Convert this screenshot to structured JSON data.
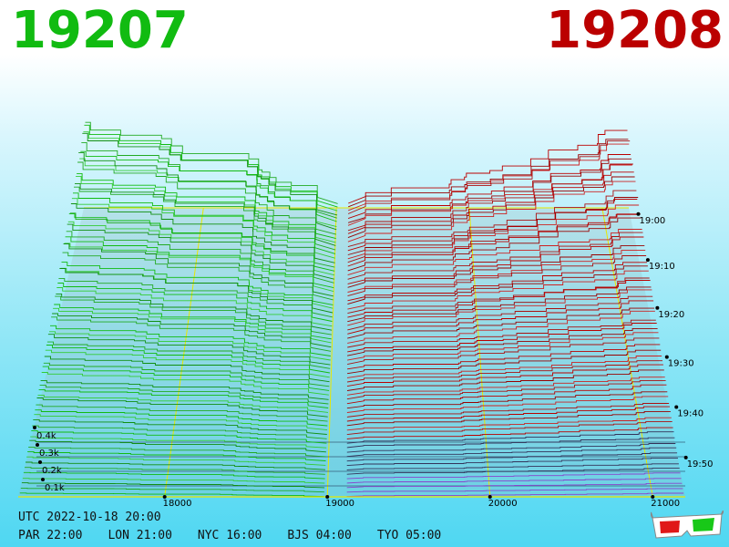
{
  "header": {
    "bid": "19207",
    "ask": "19208",
    "bid_color": "#11bb11",
    "ask_color": "#bb0000"
  },
  "footer": {
    "utc": "UTC 2022-10-18 20:00",
    "zones": [
      "PAR 22:00",
      "LON 21:00",
      "NYC 16:00",
      "BJS 04:00",
      "TYO 05:00"
    ]
  },
  "chart_data": {
    "type": "area",
    "price_ticks": [
      "18000",
      "19000",
      "20000",
      "21000"
    ],
    "time_ticks": [
      "19:00",
      "19:10",
      "19:20",
      "19:30",
      "19:40",
      "19:50"
    ],
    "depth_ticks": [
      "0.4k",
      "0.3k",
      "0.2k",
      "0.1k"
    ],
    "series": [
      {
        "name": "bid",
        "color": "#11bb11"
      },
      {
        "name": "ask",
        "color": "#bb0000"
      }
    ],
    "xlim": [
      17100,
      21200
    ],
    "grid": true
  },
  "icons": {
    "glasses": "3d-glasses-icon"
  }
}
